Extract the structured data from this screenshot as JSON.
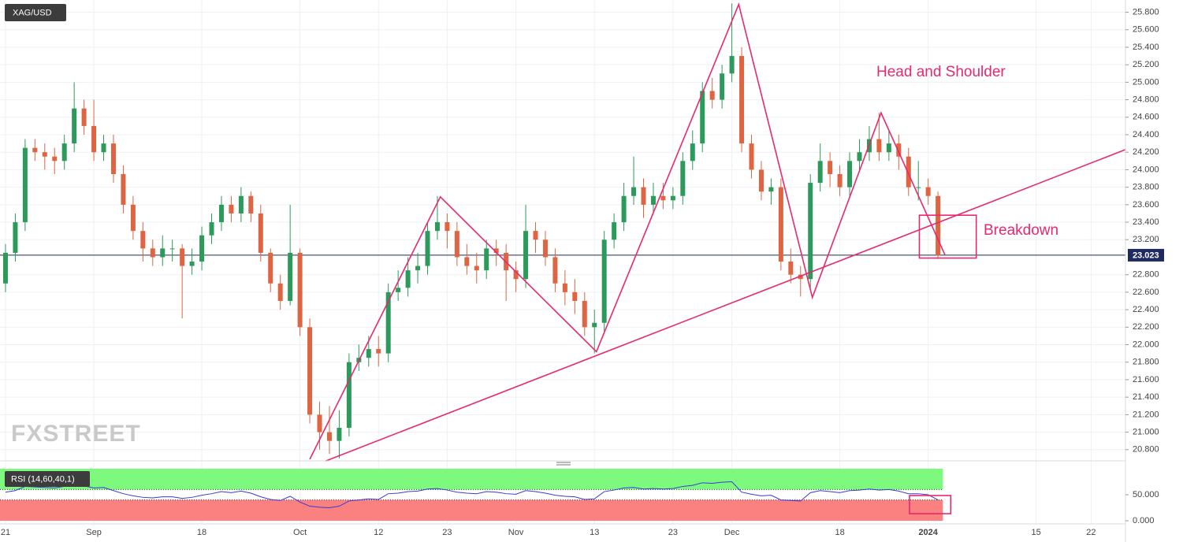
{
  "chart_data": {
    "type": "candlestick",
    "symbol": "XAG/USD",
    "watermark": "FXSTREET",
    "up_color": "#2c9a5a",
    "down_color": "#df6442",
    "grid": true,
    "xlim": [
      -0.56,
      114.1
    ],
    "ylim": [
      20.69,
      25.94
    ],
    "xticks": [
      {
        "value": 0,
        "label": "21"
      },
      {
        "value": 9,
        "label": "Sep"
      },
      {
        "value": 20,
        "label": "18"
      },
      {
        "value": 30,
        "label": "Oct"
      },
      {
        "value": 38,
        "label": "12"
      },
      {
        "value": 45,
        "label": "23"
      },
      {
        "value": 52,
        "label": "Nov"
      },
      {
        "value": 60,
        "label": "13"
      },
      {
        "value": 68,
        "label": "23"
      },
      {
        "value": 74,
        "label": "Dec"
      },
      {
        "value": 85,
        "label": "18"
      },
      {
        "value": 94,
        "label": "2024"
      },
      {
        "value": 105,
        "label": "15"
      },
      {
        "value": 110.6,
        "label": "22"
      }
    ],
    "yticks": [
      {
        "value": 20.8,
        "label": "20.800"
      },
      {
        "value": 21.0,
        "label": "21.000"
      },
      {
        "value": 21.2,
        "label": "21.200"
      },
      {
        "value": 21.4,
        "label": "21.400"
      },
      {
        "value": 21.6,
        "label": "21.600"
      },
      {
        "value": 21.8,
        "label": "21.800"
      },
      {
        "value": 22.0,
        "label": "22.000"
      },
      {
        "value": 22.2,
        "label": "22.200"
      },
      {
        "value": 22.4,
        "label": "22.400"
      },
      {
        "value": 22.6,
        "label": "22.600"
      },
      {
        "value": 22.8,
        "label": "22.800"
      },
      {
        "value": 23.2,
        "label": "23.200"
      },
      {
        "value": 23.4,
        "label": "23.400"
      },
      {
        "value": 23.6,
        "label": "23.600"
      },
      {
        "value": 23.8,
        "label": "23.800"
      },
      {
        "value": 24.0,
        "label": "24.000"
      },
      {
        "value": 24.2,
        "label": "24.200"
      },
      {
        "value": 24.4,
        "label": "24.400"
      },
      {
        "value": 24.6,
        "label": "24.600"
      },
      {
        "value": 24.8,
        "label": "24.800"
      },
      {
        "value": 25.0,
        "label": "25.000"
      },
      {
        "value": 25.2,
        "label": "25.200"
      },
      {
        "value": 25.4,
        "label": "25.400"
      },
      {
        "value": 25.6,
        "label": "25.600"
      },
      {
        "value": 25.8,
        "label": "25.800"
      }
    ],
    "last_price": 23.023,
    "last_price_color": "#1f2a5e",
    "x": [
      0,
      1,
      2,
      3,
      4,
      5,
      6,
      7,
      8,
      9,
      10,
      11,
      12,
      13,
      14,
      15,
      16,
      17,
      18,
      19,
      20,
      21,
      22,
      23,
      24,
      25,
      26,
      27,
      28,
      29,
      30,
      31,
      32,
      33,
      34,
      35,
      36,
      37,
      38,
      39,
      40,
      41,
      42,
      43,
      44,
      45,
      46,
      47,
      48,
      49,
      50,
      51,
      52,
      53,
      54,
      55,
      56,
      57,
      58,
      59,
      60,
      61,
      62,
      63,
      64,
      65,
      66,
      67,
      68,
      69,
      70,
      71,
      72,
      73,
      74,
      75,
      76,
      77,
      78,
      79,
      80,
      81,
      82,
      83,
      84,
      85,
      86,
      87,
      88,
      89,
      90,
      91,
      92,
      93,
      94,
      95
    ],
    "open": [
      22.7,
      23.05,
      23.4,
      24.25,
      24.2,
      24.15,
      24.1,
      24.3,
      24.7,
      24.5,
      24.2,
      24.3,
      23.95,
      23.6,
      23.3,
      23.1,
      23.0,
      23.1,
      23.1,
      22.9,
      22.95,
      23.25,
      23.4,
      23.6,
      23.5,
      23.7,
      23.5,
      23.05,
      22.7,
      22.5,
      23.05,
      22.2,
      21.2,
      21.0,
      20.9,
      21.05,
      21.8,
      21.85,
      21.95,
      21.9,
      22.6,
      22.65,
      22.85,
      22.9,
      23.3,
      23.4,
      23.3,
      23.0,
      22.9,
      22.85,
      23.1,
      23.05,
      22.85,
      22.75,
      23.3,
      23.2,
      23.0,
      22.7,
      22.6,
      22.5,
      22.2,
      22.25,
      23.2,
      23.4,
      23.7,
      23.8,
      23.6,
      23.7,
      23.65,
      23.7,
      24.1,
      24.3,
      24.9,
      24.8,
      25.1,
      25.3,
      24.3,
      24.0,
      23.75,
      23.8,
      22.95,
      22.8,
      22.75,
      23.85,
      24.1,
      23.95,
      23.8,
      24.1,
      24.2,
      24.35,
      24.2,
      24.3,
      24.15,
      23.8,
      23.8,
      23.7
    ],
    "high": [
      23.15,
      23.5,
      24.35,
      24.35,
      24.3,
      24.25,
      24.4,
      25.0,
      24.8,
      24.8,
      24.4,
      24.4,
      24.05,
      23.7,
      23.4,
      23.2,
      23.25,
      23.2,
      23.15,
      23.1,
      23.35,
      23.5,
      23.7,
      23.7,
      23.8,
      23.75,
      23.6,
      23.1,
      22.8,
      23.6,
      23.1,
      22.3,
      21.35,
      21.3,
      21.25,
      21.9,
      22.0,
      22.1,
      22.1,
      22.7,
      22.85,
      23.0,
      23.05,
      23.4,
      23.7,
      23.5,
      23.4,
      23.15,
      23.05,
      23.2,
      23.2,
      23.15,
      22.95,
      23.6,
      23.4,
      23.3,
      23.1,
      22.85,
      22.75,
      22.6,
      22.4,
      23.3,
      23.5,
      23.85,
      24.15,
      23.9,
      23.85,
      23.85,
      23.8,
      24.2,
      24.45,
      25.0,
      25.05,
      25.2,
      25.9,
      25.4,
      24.4,
      24.1,
      23.9,
      23.9,
      23.1,
      22.9,
      23.95,
      24.3,
      24.2,
      24.05,
      24.2,
      24.35,
      24.5,
      24.65,
      24.45,
      24.4,
      24.25,
      24.1,
      23.9,
      23.75
    ],
    "low": [
      22.6,
      22.95,
      23.3,
      24.1,
      24.0,
      23.95,
      24.0,
      24.2,
      24.4,
      24.1,
      24.1,
      23.85,
      23.5,
      23.2,
      22.95,
      22.9,
      22.9,
      22.95,
      22.3,
      22.8,
      22.85,
      23.15,
      23.3,
      23.4,
      23.4,
      23.4,
      22.95,
      22.6,
      22.4,
      22.45,
      22.1,
      21.1,
      20.8,
      20.75,
      20.7,
      20.95,
      21.7,
      21.75,
      21.75,
      21.8,
      22.5,
      22.55,
      22.7,
      22.8,
      23.2,
      23.1,
      22.9,
      22.8,
      22.7,
      22.75,
      22.9,
      22.5,
      22.6,
      22.65,
      23.05,
      22.9,
      22.6,
      22.45,
      22.35,
      22.1,
      21.9,
      22.15,
      23.1,
      23.3,
      23.6,
      23.45,
      23.5,
      23.55,
      23.55,
      23.6,
      24.0,
      24.2,
      24.7,
      24.7,
      25.0,
      24.2,
      23.9,
      23.65,
      23.6,
      22.85,
      22.7,
      22.55,
      22.65,
      23.75,
      23.8,
      23.7,
      23.7,
      24.0,
      24.1,
      24.1,
      24.1,
      24.0,
      23.7,
      23.65,
      23.6,
      22.98
    ],
    "close": [
      23.05,
      23.4,
      24.25,
      24.2,
      24.15,
      24.1,
      24.3,
      24.7,
      24.5,
      24.2,
      24.3,
      23.95,
      23.6,
      23.3,
      23.1,
      23.0,
      23.1,
      23.1,
      22.9,
      22.95,
      23.25,
      23.4,
      23.6,
      23.5,
      23.7,
      23.5,
      23.05,
      22.7,
      22.5,
      23.05,
      22.2,
      21.2,
      21.0,
      20.9,
      21.05,
      21.8,
      21.85,
      21.95,
      21.9,
      22.6,
      22.65,
      22.85,
      22.9,
      23.3,
      23.4,
      23.3,
      23.0,
      22.9,
      22.85,
      23.1,
      23.05,
      22.85,
      22.75,
      23.3,
      23.2,
      23.0,
      22.7,
      22.6,
      22.5,
      22.2,
      22.25,
      23.2,
      23.4,
      23.7,
      23.8,
      23.6,
      23.7,
      23.65,
      23.7,
      24.1,
      24.3,
      24.9,
      24.8,
      25.1,
      25.3,
      24.3,
      24.0,
      23.75,
      23.8,
      22.95,
      22.8,
      22.75,
      23.85,
      24.1,
      23.95,
      23.8,
      24.1,
      24.2,
      24.35,
      24.2,
      24.3,
      24.15,
      23.8,
      23.8,
      23.7,
      23.02
    ],
    "annotation_color": "#e8286f",
    "trendlines": [
      {
        "points": [
          [
            32.6,
            20.67
          ],
          [
            114.1,
            24.23
          ]
        ]
      },
      {
        "points": [
          [
            31.0,
            20.69
          ],
          [
            44.3,
            23.69
          ],
          [
            60.2,
            21.92
          ],
          [
            74.7,
            25.89
          ],
          [
            82.2,
            22.54
          ],
          [
            89.2,
            24.65
          ],
          [
            95.7,
            23.03
          ]
        ]
      }
    ],
    "boxes": [
      {
        "x": [
          93.1,
          98.9
        ],
        "y": [
          22.99,
          23.48
        ]
      }
    ],
    "annotations": [
      "Head and Shoulder",
      "Breakdown"
    ],
    "rsi": {
      "label": "RSI (14,60,40,1)",
      "color": "#3a3ad6",
      "ylim": [
        -6,
        103
      ],
      "yticks": [
        {
          "value": 50,
          "label": "50.000"
        },
        {
          "value": 0,
          "label": "0.000"
        }
      ],
      "range": [
        0,
        100
      ],
      "upper": 60,
      "lower": 40,
      "upper_color": "#7dfa7d",
      "lower_color": "#fb8080",
      "values": [
        55,
        58,
        66,
        65,
        64,
        63,
        66,
        70,
        67,
        63,
        64,
        58,
        52,
        48,
        45,
        44,
        46,
        46,
        43,
        45,
        49,
        52,
        56,
        54,
        57,
        53,
        46,
        41,
        39,
        47,
        36,
        28,
        26,
        25,
        28,
        38,
        40,
        42,
        41,
        52,
        53,
        56,
        57,
        61,
        62,
        59,
        55,
        53,
        52,
        56,
        55,
        52,
        51,
        58,
        56,
        53,
        49,
        47,
        46,
        41,
        42,
        56,
        59,
        63,
        64,
        61,
        62,
        61,
        62,
        66,
        68,
        73,
        72,
        74,
        75,
        55,
        51,
        48,
        49,
        40,
        39,
        38,
        54,
        58,
        56,
        54,
        58,
        59,
        61,
        59,
        60,
        57,
        52,
        52,
        50,
        40
      ],
      "box": {
        "x": [
          92.1,
          96.3
        ],
        "y": [
          13.6,
          48.5
        ]
      }
    }
  }
}
